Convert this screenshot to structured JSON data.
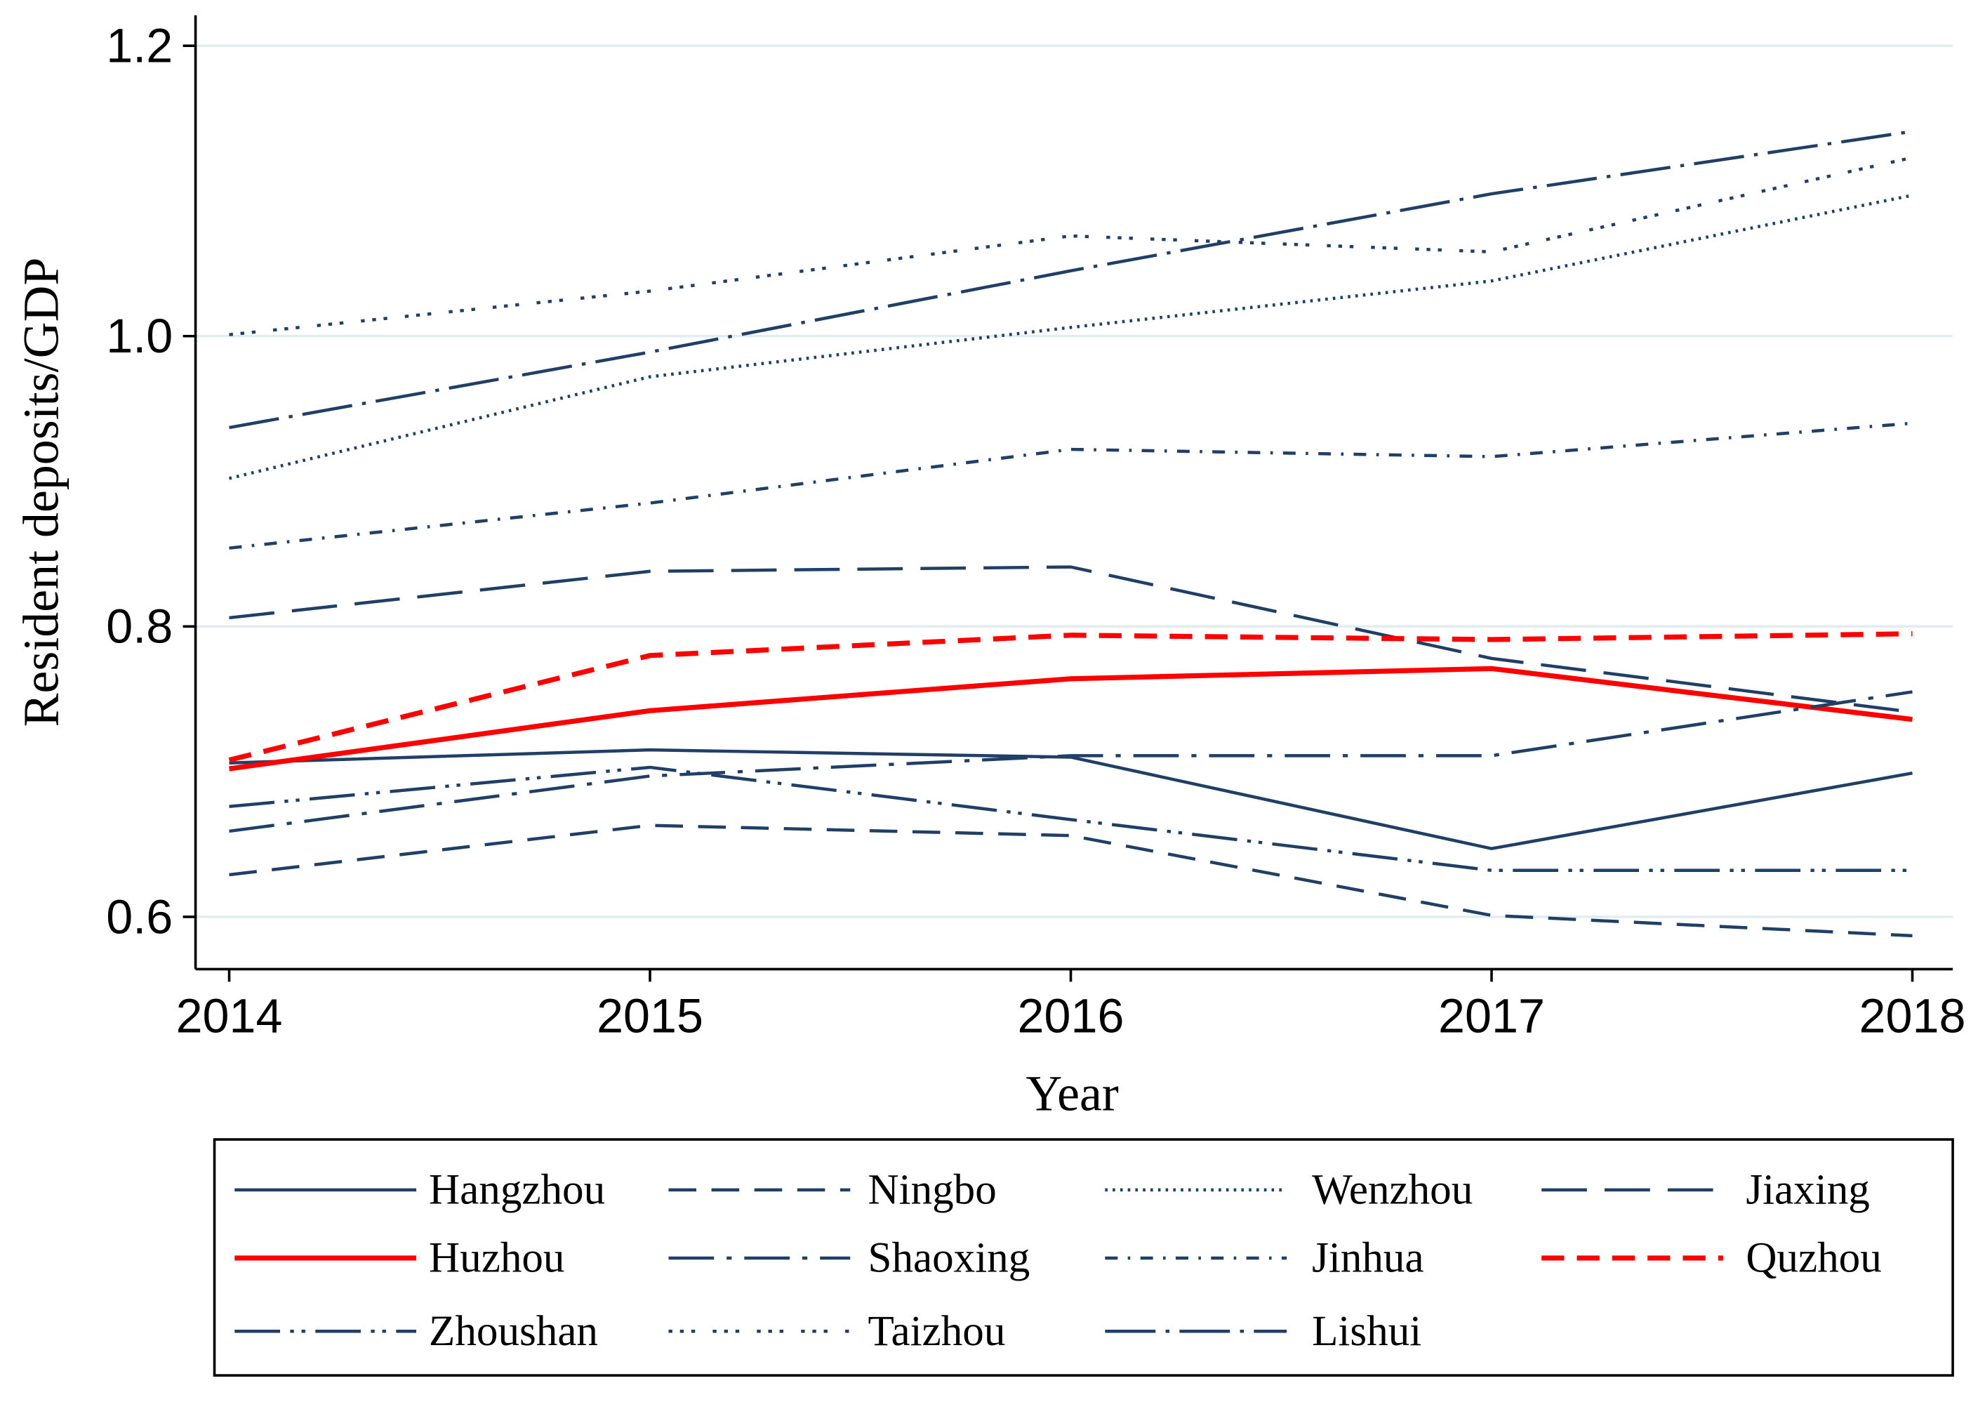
{
  "chart_data": {
    "type": "line",
    "x_label": "Year",
    "y_label": "Resident deposits/GDP",
    "x": [
      2014,
      2015,
      2016,
      2017,
      2018
    ],
    "xlim": [
      2013.92,
      2018.096
    ],
    "xticks": [
      2014,
      2015,
      2016,
      2017,
      2018
    ],
    "ylim": [
      0.564,
      1.221
    ],
    "yticks": [
      0.6,
      0.8,
      {
        "value": 1,
        "label": "1.0"
      },
      1.2
    ],
    "grid": true,
    "legend": "bottom",
    "series": [
      {
        "name": "Hangzhou",
        "color": "#1f3f66",
        "dash": "none",
        "values": [
          0.706,
          0.715,
          0.71,
          0.647,
          0.699
        ]
      },
      {
        "name": "Ningbo",
        "color": "#1f3f66",
        "dash": "22 12",
        "values": [
          0.629,
          0.663,
          0.656,
          0.601,
          0.587
        ]
      },
      {
        "name": "Wenzhou",
        "color": "#1f3f66",
        "dash": "2 4",
        "values": [
          0.902,
          0.972,
          1.006,
          1.038,
          1.097
        ]
      },
      {
        "name": "Jiaxing",
        "color": "#1f3f66",
        "dash": "36 14",
        "values": [
          0.806,
          0.838,
          0.841,
          0.778,
          0.741
        ]
      },
      {
        "name": "Huzhou",
        "color": "#ff0000",
        "dash": "none",
        "values": [
          0.702,
          0.742,
          0.764,
          0.771,
          0.736
        ]
      },
      {
        "name": "Shaoxing",
        "color": "#1f3f66",
        "dash": "36 10 4 10",
        "values": [
          0.659,
          0.697,
          0.711,
          0.711,
          0.755
        ]
      },
      {
        "name": "Jinhua",
        "color": "#1f3f66",
        "dash": "10 8 2 8",
        "values": [
          0.854,
          0.885,
          0.922,
          0.917,
          0.94
        ]
      },
      {
        "name": "Quzhou",
        "color": "#ff0000",
        "dash": "18 10",
        "values": [
          0.708,
          0.78,
          0.794,
          0.791,
          0.795
        ]
      },
      {
        "name": "Zhoushan",
        "color": "#1f3f66",
        "dash": "36 8 3 6 3 8",
        "values": [
          0.676,
          0.703,
          0.667,
          0.632,
          0.632
        ]
      },
      {
        "name": "Taizhou",
        "color": "#1f3f66",
        "dash": "3 6 3 6 3 14",
        "values": [
          1.001,
          1.031,
          1.069,
          1.058,
          1.123
        ]
      },
      {
        "name": "Lishui",
        "color": "#1f3f66",
        "dash": "40 8 3 8",
        "values": [
          0.937,
          0.989,
          1.045,
          1.098,
          1.141
        ]
      }
    ]
  }
}
